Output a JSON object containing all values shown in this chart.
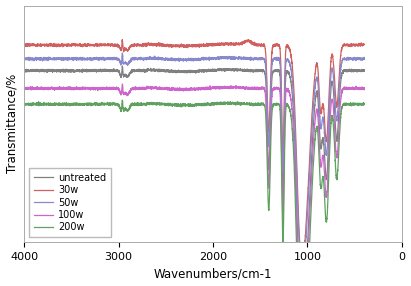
{
  "title": "",
  "xlabel": "Wavenumbers/cm-1",
  "ylabel": "Transmittance/%",
  "xlim": [
    4000,
    0
  ],
  "ylim": [
    -0.05,
    1.15
  ],
  "xticks": [
    4000,
    3000,
    2000,
    1000,
    0
  ],
  "legend_labels": [
    "untreated",
    "30w",
    "50w",
    "100w",
    "200w"
  ],
  "colors": [
    "#808080",
    "#d06060",
    "#8888cc",
    "#cc66cc",
    "#60a060"
  ],
  "linewidths": [
    0.9,
    0.9,
    0.9,
    0.9,
    0.9
  ],
  "bg_color": "#ffffff",
  "baselines": {
    "untreated": 0.82,
    "30w": 0.95,
    "50w": 0.88,
    "100w": 0.73,
    "200w": 0.65
  },
  "amp_scales": {
    "untreated": 0.25,
    "30w": 0.22,
    "50w": 0.22,
    "100w": 0.25,
    "200w": 0.27
  }
}
